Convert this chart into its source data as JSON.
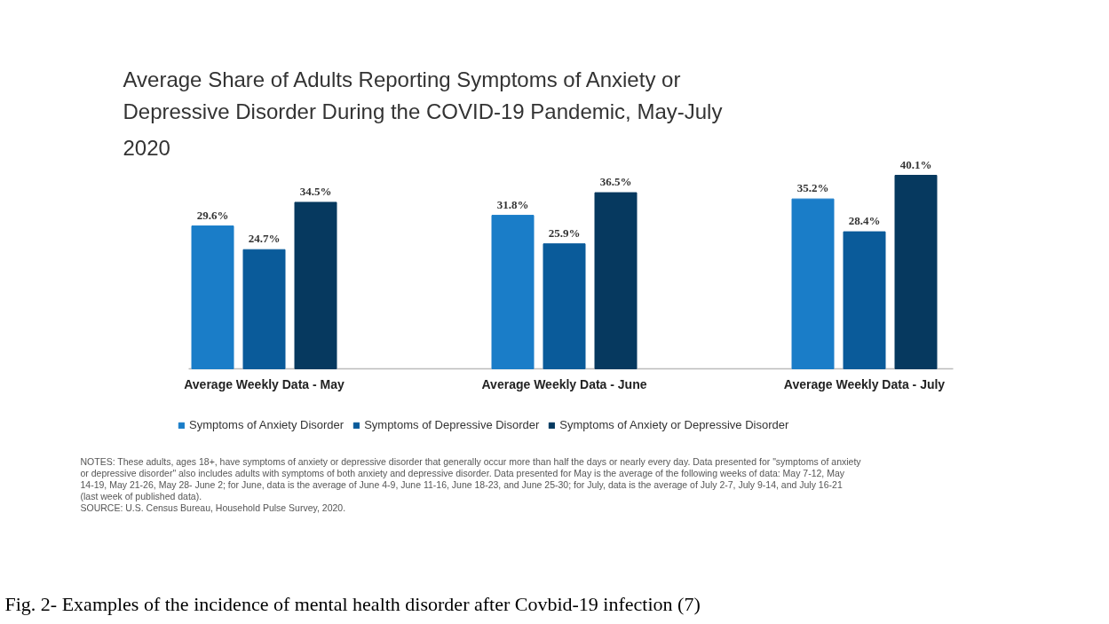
{
  "chart_data": {
    "type": "bar",
    "title": "Average Share of Adults Reporting Symptoms of Anxiety or Depressive Disorder During the COVID-19 Pandemic, May-July 2020",
    "categories": [
      "Average Weekly Data - May",
      "Average Weekly Data - June",
      "Average Weekly Data - July"
    ],
    "series": [
      {
        "name": "Symptoms of Anxiety Disorder",
        "color": "#1a7dc8",
        "values": [
          29.6,
          31.8,
          35.2
        ],
        "value_labels": [
          "29.6%",
          "31.8%",
          "35.2%"
        ]
      },
      {
        "name": "Symptoms of Depressive Disorder",
        "color": "#0a5b9a",
        "values": [
          24.7,
          25.9,
          28.4
        ],
        "value_labels": [
          "24.7%",
          "25.9%",
          "28.4%"
        ]
      },
      {
        "name": "Symptoms of Anxiety or Depressive Disorder",
        "color": "#06395f",
        "values": [
          34.5,
          36.5,
          40.1
        ],
        "value_labels": [
          "34.5%",
          "36.5%",
          "40.1%"
        ]
      }
    ],
    "legend": "bottom",
    "annotations": [
      "NOTES: These adults, ages 18+, have symptoms of anxiety or depressive disorder that generally occur more than half the days or nearly every day. Data presented for \"symptoms of anxiety or depressive disorder\" also includes adults with symptoms of both anxiety and depressive disorder. Data presented for May is the average of the following weeks of data: May 7-12, May 14-19, May 21-26, May 28- June 2; for June, data is the average of June 4-9, June 11-16, June 18-23, and June 25-30; for July, data is the average of July 2-7, July 9-14, and July 16-21 (last week of published data).",
      "SOURCE: U.S. Census Bureau, Household Pulse Survey, 2020.",
      "Fig. 2- Examples of the incidence of mental health disorder after Covbid-19 infection (7)"
    ]
  }
}
